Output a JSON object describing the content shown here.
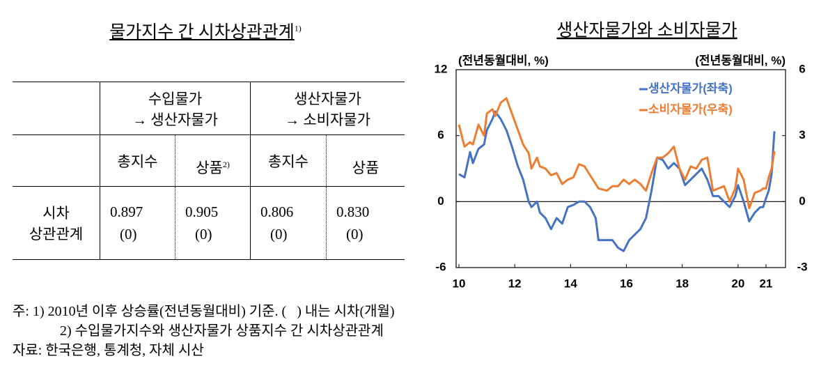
{
  "left_title": {
    "text": "물가지수 간 시차상관관계",
    "note": "1)"
  },
  "table": {
    "groups": [
      {
        "lines": [
          "수입물가",
          "→ 생산자물가"
        ]
      },
      {
        "lines": [
          "생산자물가",
          "→ 소비자물가"
        ]
      }
    ],
    "subheaders": [
      {
        "text": "총지수"
      },
      {
        "text": "상품",
        "note": "2)"
      },
      {
        "text": "총지수"
      },
      {
        "text": "상품"
      }
    ],
    "row_label": [
      "시차",
      "상관관계"
    ],
    "cells": [
      [
        "0.897",
        "(0)"
      ],
      [
        "0.905",
        "(0)"
      ],
      [
        "0.806",
        "(0)"
      ],
      [
        "0.830",
        "(0)"
      ]
    ]
  },
  "notes": [
    "주: 1) 2010년 이후 상승률(전년동월대비) 기준. (   ) 내는 시차(개월)",
    "2) 수입물가지수와 생산자물가 상품지수 간 시차상관관계",
    "자료: 한국은행, 통계청, 자체 시산"
  ],
  "chart_data": {
    "type": "line",
    "title": "생산자물가와 소비자물가",
    "y_label": "(전년동월대비, %)",
    "y2_label": "(전년동월대비, %)",
    "x": [
      10.0,
      10.2,
      10.4,
      10.5,
      10.7,
      10.9,
      11.0,
      11.2,
      11.3,
      11.5,
      11.7,
      11.9,
      12.1,
      12.3,
      12.5,
      12.6,
      12.8,
      12.9,
      13.1,
      13.3,
      13.5,
      13.7,
      13.9,
      14.1,
      14.3,
      14.5,
      14.7,
      14.9,
      15.0,
      15.3,
      15.5,
      15.7,
      15.9,
      16.1,
      16.3,
      16.5,
      16.7,
      16.9,
      17.1,
      17.3,
      17.5,
      17.7,
      17.9,
      18.1,
      18.3,
      18.5,
      18.7,
      18.9,
      19.1,
      19.3,
      19.5,
      19.7,
      19.9,
      20.0,
      20.2,
      20.4,
      20.6,
      20.8,
      20.9,
      21.0,
      21.1,
      21.2,
      21.3
    ],
    "series": [
      {
        "name": "생산자물가(좌축)",
        "color": "#4472c4",
        "axis": "y",
        "values": [
          2.5,
          2.2,
          4.5,
          3.5,
          4.8,
          5.2,
          6.5,
          7.5,
          8.2,
          7.5,
          6.5,
          5.0,
          3.3,
          2.0,
          0.0,
          -0.5,
          0.0,
          -1.0,
          -1.5,
          -2.5,
          -1.5,
          -2.0,
          -0.5,
          -0.3,
          0.0,
          0.0,
          -0.5,
          -1.5,
          -3.5,
          -3.5,
          -3.5,
          -4.2,
          -4.5,
          -3.5,
          -3.0,
          -2.5,
          -1.5,
          1.0,
          4.0,
          3.8,
          3.0,
          3.5,
          3.0,
          1.5,
          2.0,
          2.5,
          3.0,
          2.0,
          0.5,
          0.5,
          0.0,
          -0.5,
          0.5,
          1.5,
          0.0,
          -1.8,
          -1.0,
          -0.5,
          -0.5,
          0.3,
          1.0,
          2.5,
          6.4
        ]
      },
      {
        "name": "소비자물가(우축)",
        "color": "#ed7d31",
        "axis": "y2",
        "values": [
          3.5,
          2.5,
          2.7,
          2.6,
          3.5,
          3.0,
          4.0,
          4.2,
          3.9,
          4.5,
          4.7,
          4.0,
          3.3,
          2.6,
          2.2,
          1.5,
          2.0,
          1.6,
          1.5,
          1.2,
          1.3,
          0.8,
          1.0,
          1.1,
          1.7,
          1.6,
          1.2,
          0.8,
          0.6,
          0.5,
          0.7,
          0.7,
          1.0,
          0.8,
          1.0,
          0.8,
          0.5,
          1.3,
          2.0,
          2.0,
          2.2,
          2.5,
          1.5,
          1.0,
          1.6,
          1.5,
          1.9,
          2.0,
          0.5,
          0.6,
          0.7,
          0.0,
          0.6,
          1.5,
          1.0,
          -0.3,
          0.4,
          0.5,
          0.6,
          0.6,
          1.1,
          1.5,
          2.3
        ]
      }
    ],
    "xlim": [
      9.9,
      21.7
    ],
    "xticks": [
      10,
      12,
      14,
      16,
      18,
      20,
      21
    ],
    "ylim": [
      -6,
      12
    ],
    "yticks": [
      -6,
      0,
      6,
      12
    ],
    "y2lim": [
      -3,
      6
    ],
    "y2ticks": [
      -3,
      0,
      3,
      6
    ],
    "zero_line": true,
    "legend": "upper right"
  }
}
